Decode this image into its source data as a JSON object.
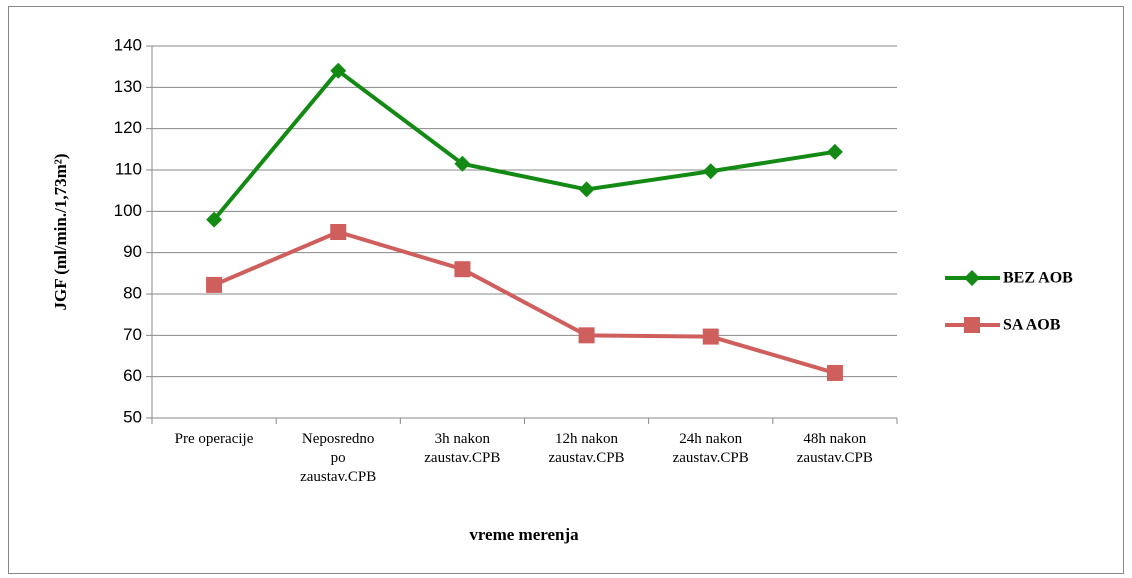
{
  "chart_data": {
    "type": "line",
    "y_label": "JGF (ml/min./1,73m²)",
    "x_label": "vreme merenja",
    "categories": [
      "Pre operacije",
      "Neposredno\npo\nzaustav.CPB",
      "3h nakon\nzaustav.CPB",
      "12h nakon\nzaustav.CPB",
      "24h nakon\nzaustav.CPB",
      "48h nakon\nzaustav.CPB"
    ],
    "series": [
      {
        "name": "BEZ AOB",
        "color": "#138a13",
        "marker": "diamond",
        "values": [
          98,
          134,
          111.5,
          105.3,
          109.7,
          114.4
        ]
      },
      {
        "name": "SA AOB",
        "color": "#cf5f5c",
        "marker": "square",
        "values": [
          82.2,
          95,
          86,
          70,
          69.7,
          60.9
        ]
      }
    ],
    "ylim": [
      50,
      140
    ],
    "yticks": [
      50,
      60,
      70,
      80,
      90,
      100,
      110,
      120,
      130,
      140
    ],
    "grid": true,
    "legend": "right"
  }
}
